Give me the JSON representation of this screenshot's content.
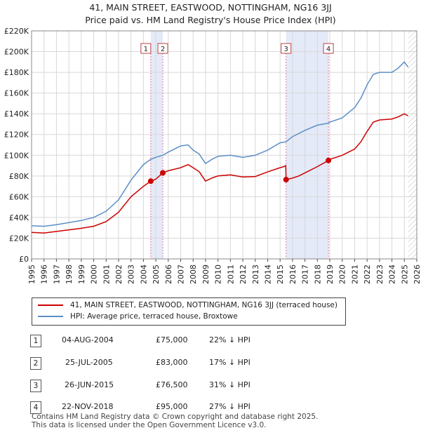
{
  "title_line1": "41, MAIN STREET, EASTWOOD, NOTTINGHAM, NG16 3JJ",
  "title_line2": "Price paid vs. HM Land Registry's House Price Index (HPI)",
  "chart_data": {
    "type": "line",
    "xlim": [
      1995,
      2026
    ],
    "ylim": [
      0,
      220000
    ],
    "x_ticks": [
      "1995",
      "1996",
      "1997",
      "1998",
      "1999",
      "2000",
      "2001",
      "2002",
      "2003",
      "2004",
      "2005",
      "2006",
      "2007",
      "2008",
      "2009",
      "2010",
      "2011",
      "2012",
      "2013",
      "2014",
      "2015",
      "2016",
      "2017",
      "2018",
      "2019",
      "2020",
      "2021",
      "2022",
      "2023",
      "2024",
      "2025",
      "2026"
    ],
    "y_ticks": [
      {
        "value": 0,
        "label": "£0"
      },
      {
        "value": 20000,
        "label": "£20K"
      },
      {
        "value": 40000,
        "label": "£40K"
      },
      {
        "value": 60000,
        "label": "£60K"
      },
      {
        "value": 80000,
        "label": "£80K"
      },
      {
        "value": 100000,
        "label": "£100K"
      },
      {
        "value": 120000,
        "label": "£120K"
      },
      {
        "value": 140000,
        "label": "£140K"
      },
      {
        "value": 160000,
        "label": "£160K"
      },
      {
        "value": 180000,
        "label": "£180K"
      },
      {
        "value": 200000,
        "label": "£200K"
      },
      {
        "value": 220000,
        "label": "£220K"
      }
    ],
    "grid": true,
    "series": [
      {
        "name": "41, MAIN STREET, EASTWOOD, NOTTINGHAM, NG16 3JJ (terraced house)",
        "color": "#cc0000",
        "points": [
          [
            1995,
            25500
          ],
          [
            1996,
            25000
          ],
          [
            1997,
            26500
          ],
          [
            1998,
            28000
          ],
          [
            1999,
            29500
          ],
          [
            2000,
            31500
          ],
          [
            2001,
            36000
          ],
          [
            2002,
            45000
          ],
          [
            2003,
            60000
          ],
          [
            2004,
            70000
          ],
          [
            2004.59,
            75000
          ],
          [
            2005,
            77000
          ],
          [
            2005.56,
            83000
          ],
          [
            2006,
            85000
          ],
          [
            2007,
            88000
          ],
          [
            2007.6,
            91000
          ],
          [
            2008,
            88000
          ],
          [
            2008.5,
            84000
          ],
          [
            2009,
            75000
          ],
          [
            2009.5,
            78000
          ],
          [
            2010,
            80000
          ],
          [
            2011,
            81000
          ],
          [
            2012,
            79000
          ],
          [
            2013,
            79500
          ],
          [
            2014,
            84000
          ],
          [
            2015,
            88000
          ],
          [
            2015.3,
            89000
          ],
          [
            2015.45,
            90000
          ],
          [
            2015.48,
            76500
          ],
          [
            2016,
            78000
          ],
          [
            2016.5,
            80000
          ],
          [
            2017,
            83000
          ],
          [
            2018,
            89000
          ],
          [
            2018.89,
            95000
          ],
          [
            2019,
            96000
          ],
          [
            2020,
            100000
          ],
          [
            2021,
            106000
          ],
          [
            2021.5,
            113000
          ],
          [
            2022,
            123000
          ],
          [
            2022.5,
            132000
          ],
          [
            2023,
            134000
          ],
          [
            2024,
            135000
          ],
          [
            2024.5,
            137000
          ],
          [
            2025,
            140000
          ],
          [
            2025.3,
            138000
          ]
        ]
      },
      {
        "name": "HPI: Average price, terraced house, Broxtowe",
        "color": "#5b8fc7",
        "points": [
          [
            1995,
            32000
          ],
          [
            1996,
            31500
          ],
          [
            1997,
            33000
          ],
          [
            1998,
            35000
          ],
          [
            1999,
            37000
          ],
          [
            2000,
            40000
          ],
          [
            2001,
            46000
          ],
          [
            2002,
            57000
          ],
          [
            2003,
            76000
          ],
          [
            2004,
            91000
          ],
          [
            2004.59,
            96000
          ],
          [
            2005,
            98000
          ],
          [
            2005.56,
            100000
          ],
          [
            2006,
            103000
          ],
          [
            2007,
            109000
          ],
          [
            2007.6,
            110000
          ],
          [
            2008,
            105000
          ],
          [
            2008.5,
            101000
          ],
          [
            2009,
            92000
          ],
          [
            2009.5,
            96000
          ],
          [
            2010,
            99000
          ],
          [
            2011,
            100000
          ],
          [
            2012,
            98000
          ],
          [
            2013,
            100000
          ],
          [
            2014,
            105000
          ],
          [
            2015,
            112000
          ],
          [
            2015.48,
            113000
          ],
          [
            2016,
            118000
          ],
          [
            2017,
            124000
          ],
          [
            2018,
            129000
          ],
          [
            2018.89,
            131000
          ],
          [
            2019,
            132000
          ],
          [
            2020,
            136000
          ],
          [
            2021,
            146000
          ],
          [
            2021.5,
            155000
          ],
          [
            2022,
            168000
          ],
          [
            2022.5,
            178000
          ],
          [
            2023,
            180000
          ],
          [
            2024,
            180000
          ],
          [
            2024.5,
            184000
          ],
          [
            2025,
            190000
          ],
          [
            2025.3,
            185000
          ]
        ]
      }
    ],
    "sales": [
      {
        "label": "1",
        "x": 2004.59,
        "price": 75000
      },
      {
        "label": "2",
        "x": 2005.56,
        "price": 83000
      },
      {
        "label": "3",
        "x": 2015.48,
        "price": 76500
      },
      {
        "label": "4",
        "x": 2018.89,
        "price": 95000
      }
    ],
    "shaded_ranges": [
      [
        2004.59,
        2005.56
      ],
      [
        2015.48,
        2018.89
      ]
    ],
    "hatched_from": 2025.3
  },
  "legend": {
    "line1": "41, MAIN STREET, EASTWOOD, NOTTINGHAM, NG16 3JJ (terraced house)",
    "line2": "HPI: Average price, terraced house, Broxtowe",
    "color1": "#cc0000",
    "color2": "#5b8fc7"
  },
  "annotations": [
    {
      "num": "1",
      "date": "04-AUG-2004",
      "price": "£75,000",
      "hpi": "22% ↓ HPI"
    },
    {
      "num": "2",
      "date": "25-JUL-2005",
      "price": "£83,000",
      "hpi": "17% ↓ HPI"
    },
    {
      "num": "3",
      "date": "26-JUN-2015",
      "price": "£76,500",
      "hpi": "31% ↓ HPI"
    },
    {
      "num": "4",
      "date": "22-NOV-2018",
      "price": "£95,000",
      "hpi": "27% ↓ HPI"
    }
  ],
  "footer_line1": "Contains HM Land Registry data © Crown copyright and database right 2025.",
  "footer_line2": "This data is licensed under the Open Government Licence v3.0."
}
